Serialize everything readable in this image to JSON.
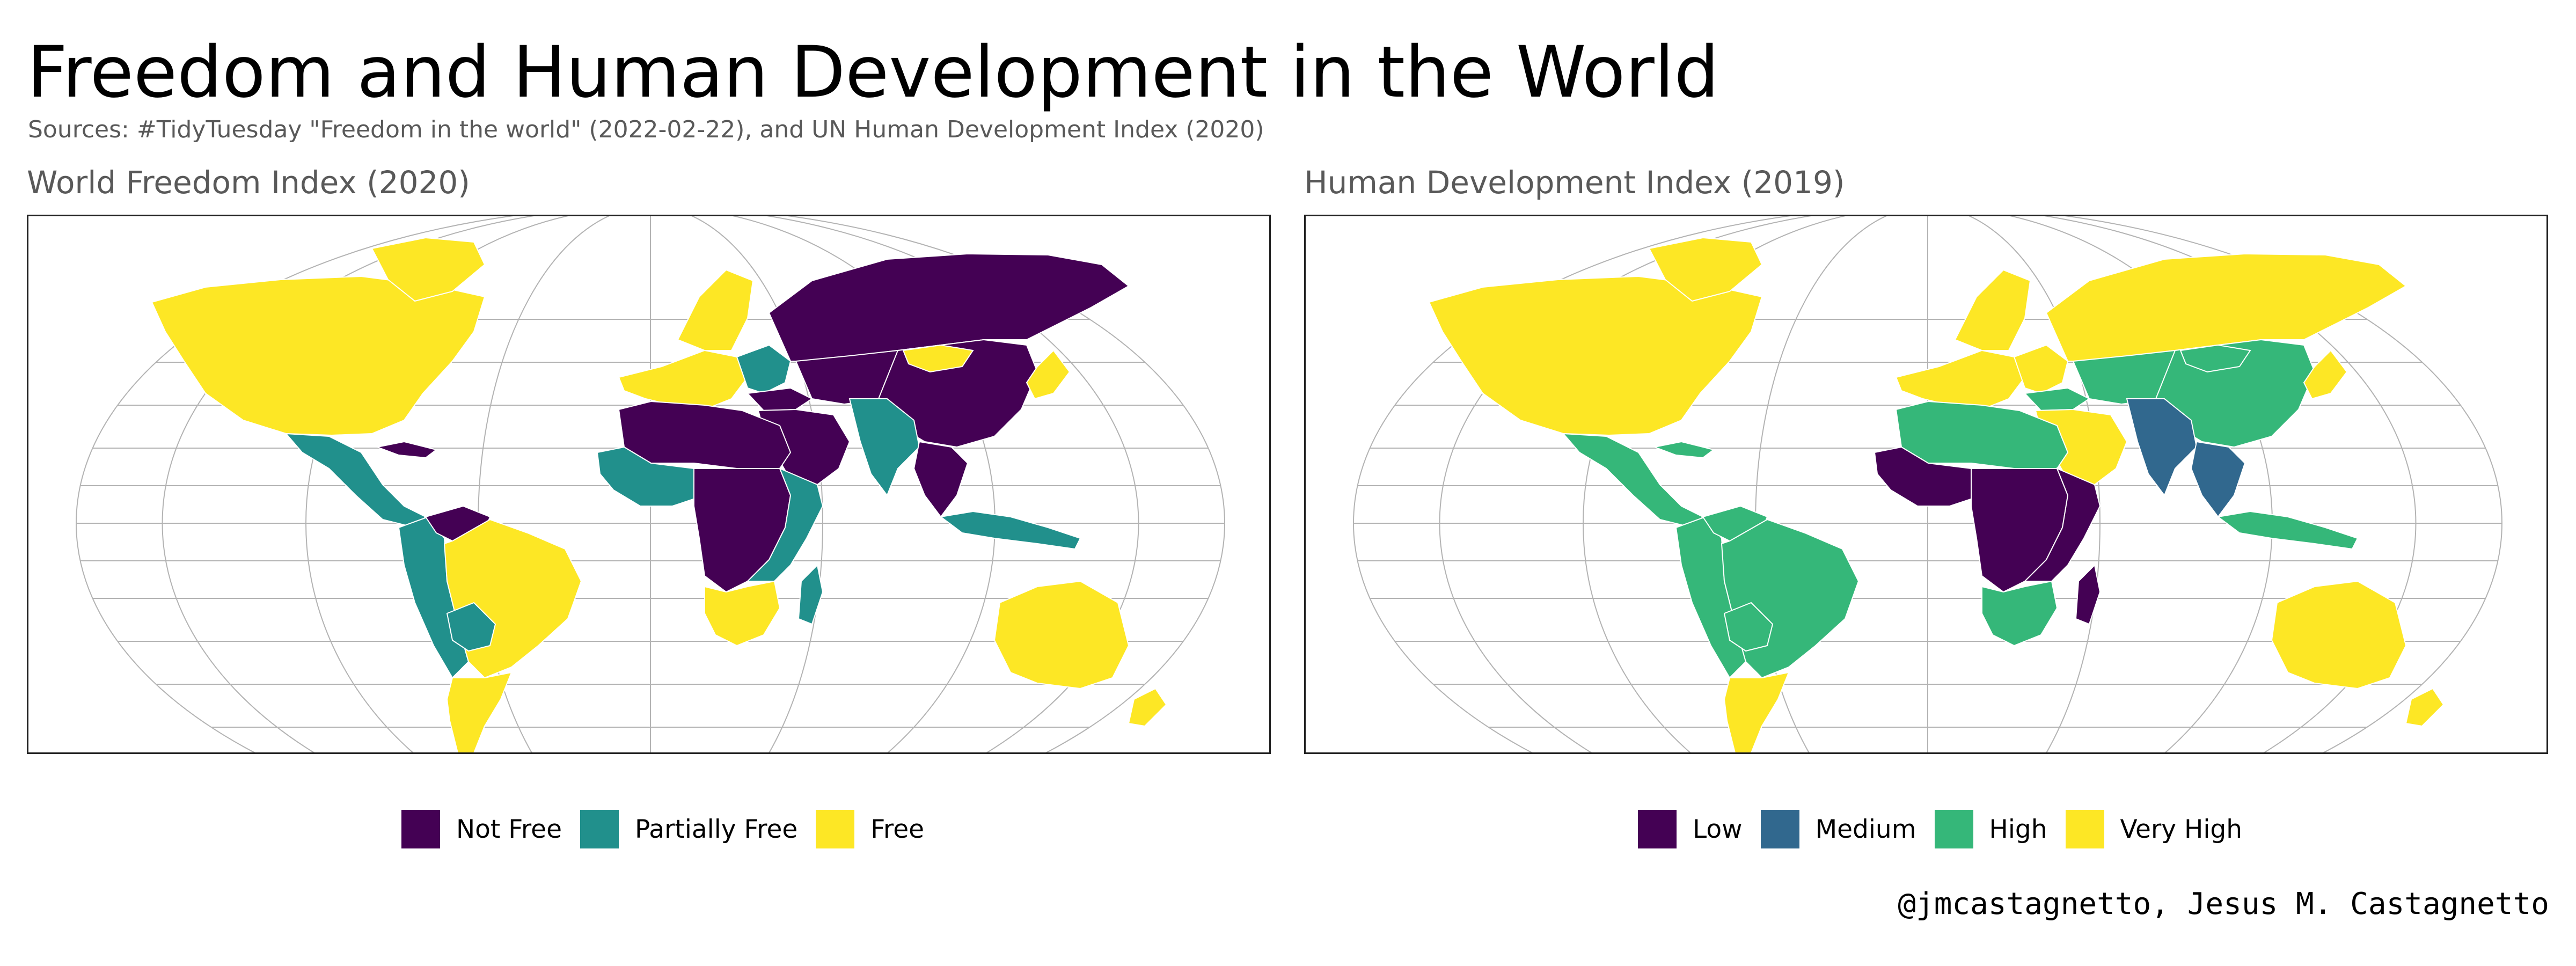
{
  "title": "Freedom and Human Development in the World",
  "subtitle": "Sources: #TidyTuesday \"Freedom in the world\" (2022-02-22), and UN Human Development Index (2020)",
  "credit": "@jmcastagnetto, Jesus M. Castagnetto",
  "colors": {
    "very_dark_purple": "#440154",
    "teal": "#21908C",
    "blue": "#31688E",
    "green": "#35B779",
    "yellow": "#FDE725",
    "grid": "#b3b3b3",
    "ocean": "#ffffff"
  },
  "maps": [
    {
      "id": "freedom",
      "title": "World Freedom Index (2020)",
      "legend": [
        {
          "label": "Not Free",
          "color": "#440154"
        },
        {
          "label": "Partially Free",
          "color": "#21908C"
        },
        {
          "label": "Free",
          "color": "#FDE725"
        }
      ],
      "regions": {
        "north_america": "Free",
        "greenland": "Free",
        "central_america": "Partially Free",
        "cuba": "Not Free",
        "andes_north": "Partially Free",
        "venezuela": "Not Free",
        "brazil": "Free",
        "southern_cone": "Free",
        "bolivia_paraguay": "Partially Free",
        "western_europe": "Free",
        "scandinavia": "Free",
        "eastern_europe": "Partially Free",
        "turkey": "Not Free",
        "russia": "Not Free",
        "central_asia": "Not Free",
        "china": "Not Free",
        "mongolia": "Free",
        "japan_korea": "Free",
        "middle_east": "Not Free",
        "south_asia": "Partially Free",
        "southeast_asia": "Not Free",
        "indonesia": "Partially Free",
        "north_africa": "Not Free",
        "west_africa": "Partially Free",
        "central_africa": "Not Free",
        "east_africa": "Partially Free",
        "southern_africa": "Free",
        "madagascar": "Partially Free",
        "australia": "Free",
        "new_zealand": "Free"
      }
    },
    {
      "id": "hdi",
      "title": "Human Development Index (2019)",
      "legend": [
        {
          "label": "Low",
          "color": "#440154"
        },
        {
          "label": "Medium",
          "color": "#31688E"
        },
        {
          "label": "High",
          "color": "#35B779"
        },
        {
          "label": "Very High",
          "color": "#FDE725"
        }
      ],
      "regions": {
        "north_america": "Very High",
        "greenland": "Very High",
        "central_america": "High",
        "cuba": "High",
        "andes_north": "High",
        "venezuela": "High",
        "brazil": "High",
        "southern_cone": "Very High",
        "bolivia_paraguay": "High",
        "western_europe": "Very High",
        "scandinavia": "Very High",
        "eastern_europe": "Very High",
        "turkey": "High",
        "russia": "Very High",
        "central_asia": "High",
        "china": "High",
        "mongolia": "High",
        "japan_korea": "Very High",
        "middle_east": "Very High",
        "south_asia": "Medium",
        "southeast_asia": "Medium",
        "indonesia": "High",
        "north_africa": "High",
        "west_africa": "Low",
        "central_africa": "Low",
        "east_africa": "Low",
        "southern_africa": "High",
        "madagascar": "Low",
        "australia": "Very High",
        "new_zealand": "Very High"
      }
    }
  ]
}
